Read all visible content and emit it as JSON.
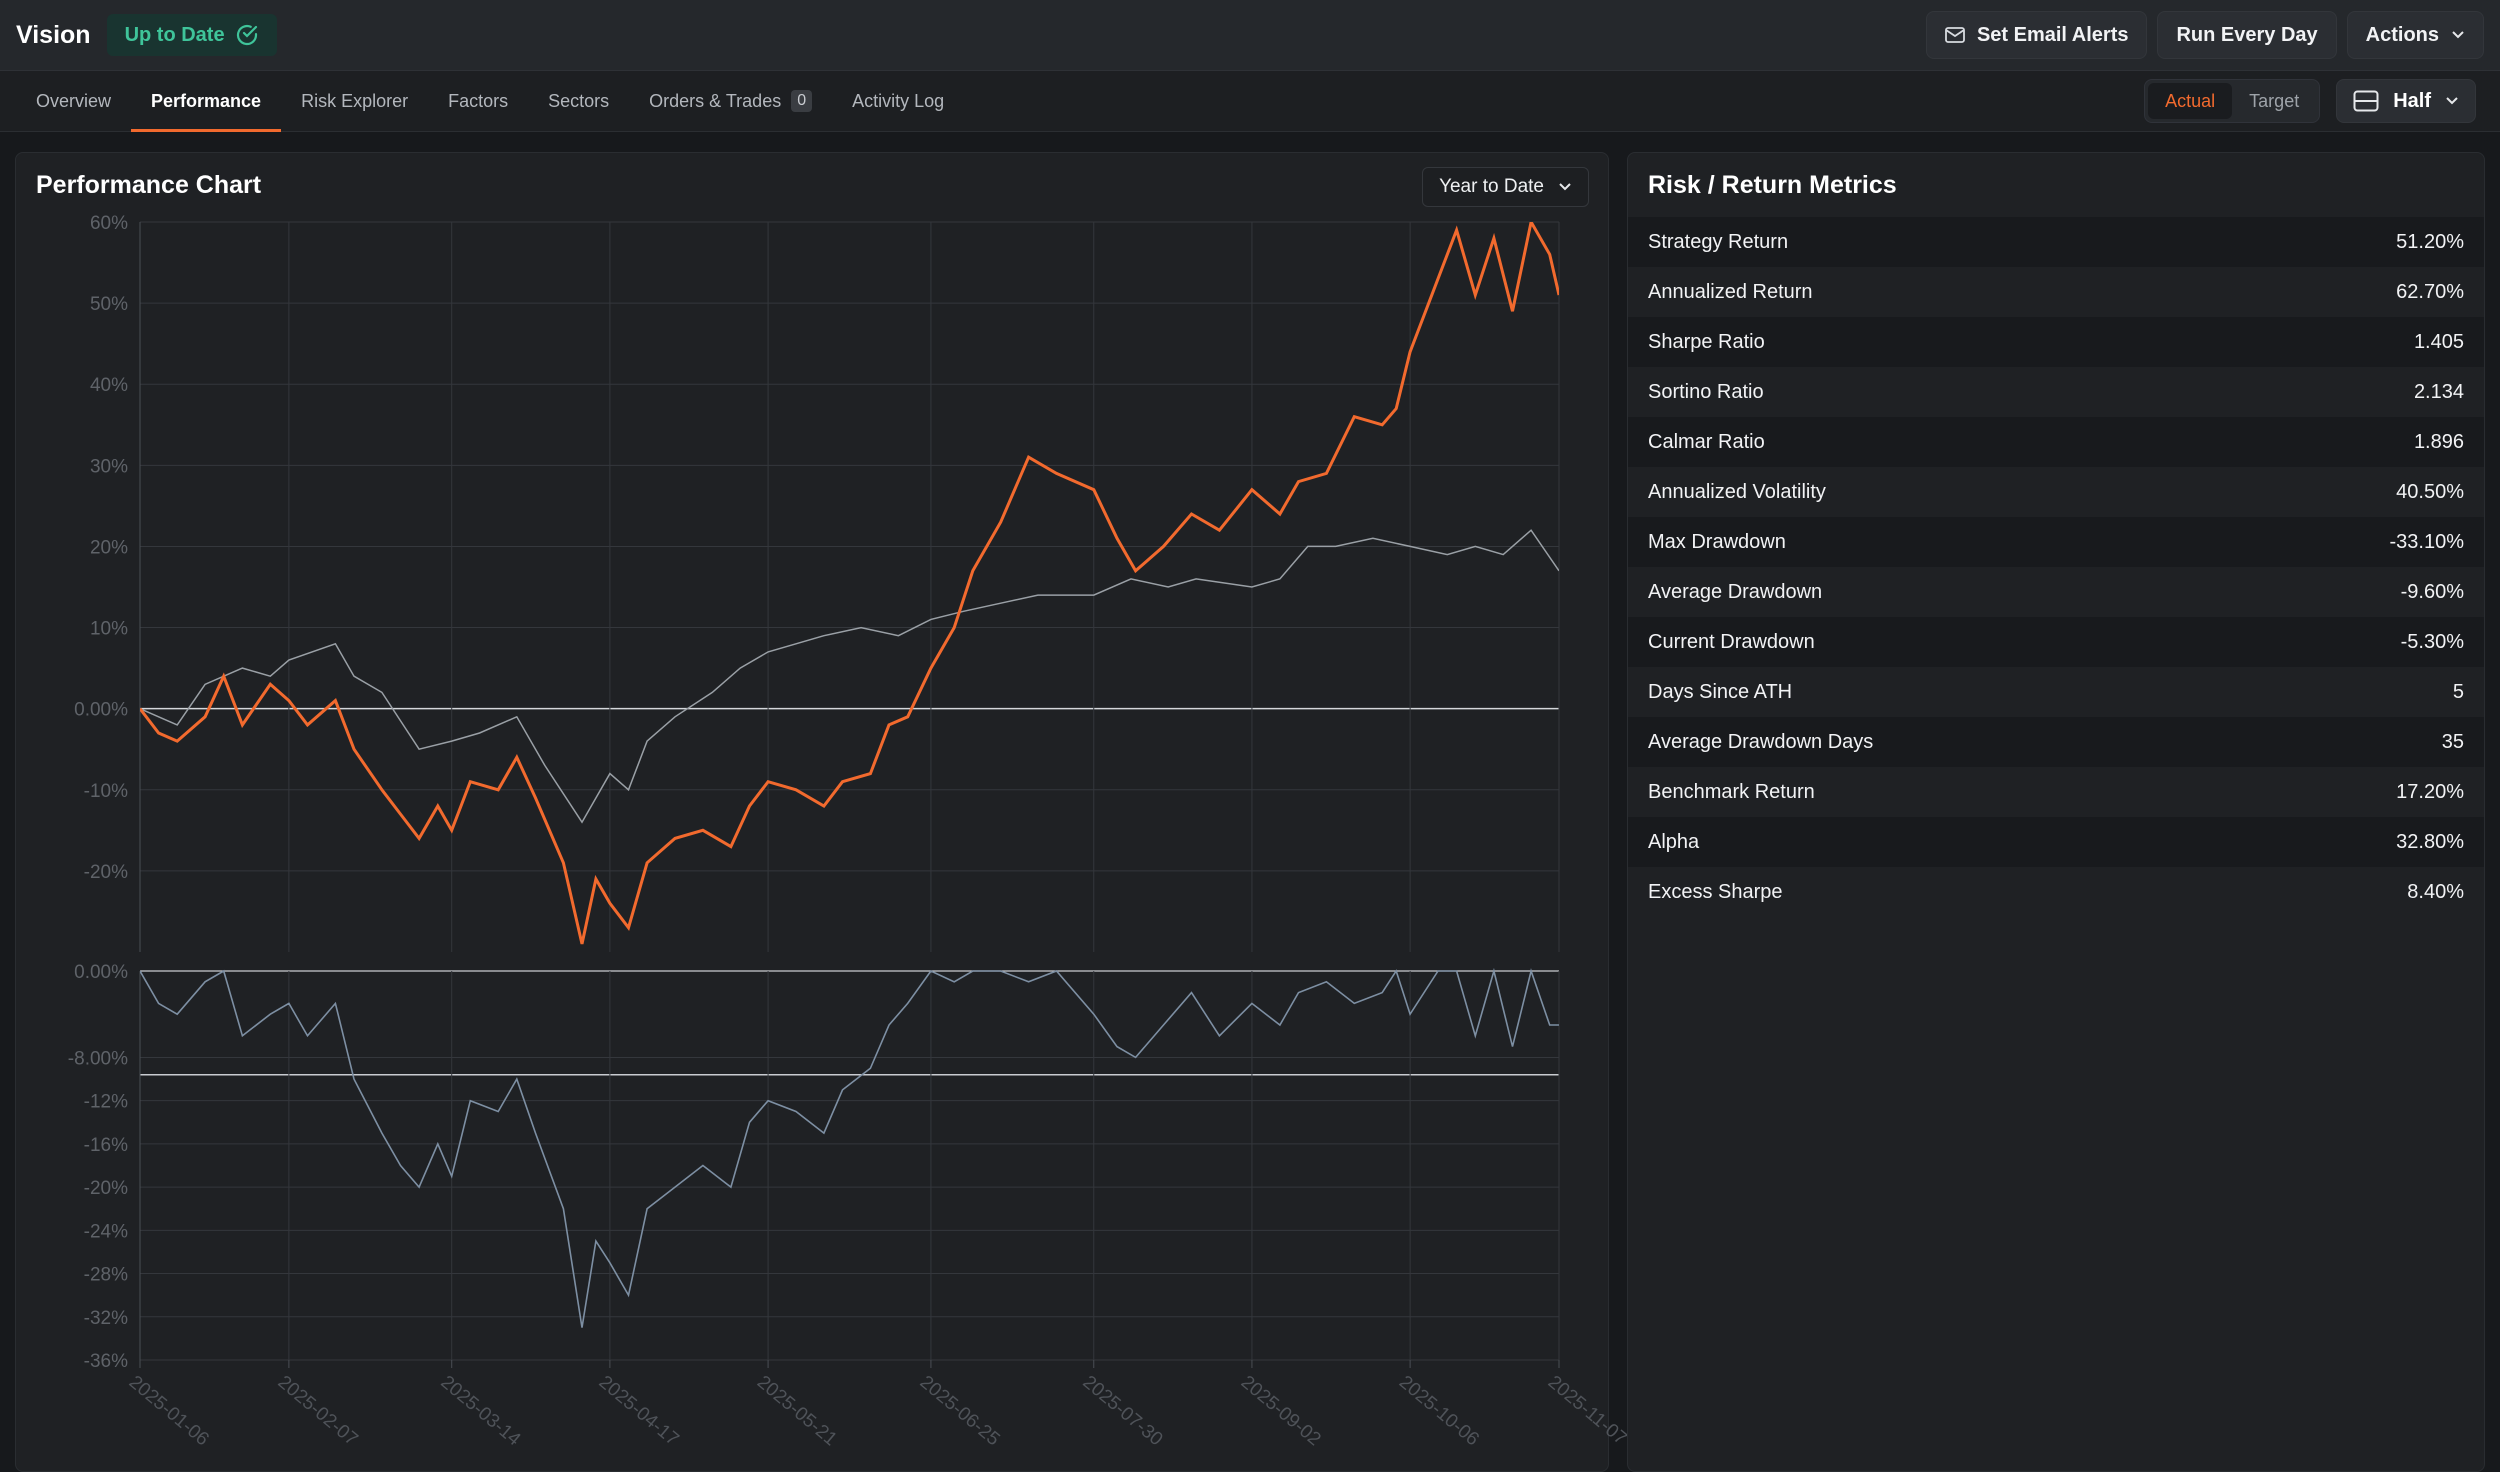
{
  "app": {
    "title": "Vision",
    "status": "Up to Date"
  },
  "top_actions": {
    "email_alerts": "Set Email Alerts",
    "run_schedule": "Run Every Day",
    "actions": "Actions"
  },
  "tabs": [
    {
      "label": "Overview"
    },
    {
      "label": "Performance",
      "active": true
    },
    {
      "label": "Risk Explorer"
    },
    {
      "label": "Factors"
    },
    {
      "label": "Sectors"
    },
    {
      "label": "Orders & Trades",
      "count": "0"
    },
    {
      "label": "Activity Log"
    }
  ],
  "view_toggle": {
    "actual": "Actual",
    "target": "Target",
    "active": "Actual"
  },
  "layout_button": {
    "label": "Half"
  },
  "performance_panel": {
    "title": "Performance Chart",
    "range": "Year to Date"
  },
  "metrics_panel": {
    "title": "Risk / Return Metrics",
    "rows": [
      {
        "label": "Strategy Return",
        "value": "51.20%"
      },
      {
        "label": "Annualized Return",
        "value": "62.70%"
      },
      {
        "label": "Sharpe Ratio",
        "value": "1.405"
      },
      {
        "label": "Sortino Ratio",
        "value": "2.134"
      },
      {
        "label": "Calmar Ratio",
        "value": "1.896"
      },
      {
        "label": "Annualized Volatility",
        "value": "40.50%"
      },
      {
        "label": "Max Drawdown",
        "value": "-33.10%"
      },
      {
        "label": "Average Drawdown",
        "value": "-9.60%"
      },
      {
        "label": "Current Drawdown",
        "value": "-5.30%"
      },
      {
        "label": "Days Since ATH",
        "value": "5"
      },
      {
        "label": "Average Drawdown Days",
        "value": "35"
      },
      {
        "label": "Benchmark Return",
        "value": "17.20%"
      },
      {
        "label": "Alpha",
        "value": "32.80%"
      },
      {
        "label": "Excess Sharpe",
        "value": "8.40%"
      }
    ]
  },
  "colors": {
    "strategy": "#f26a2e",
    "benchmark": "#9aa0a6",
    "drawdown": "#7d8fa3",
    "accent_green": "#3fc49a"
  },
  "chart_data": [
    {
      "type": "line",
      "ylim": [
        -30,
        60
      ],
      "y_ticks": [
        "-20%",
        "-10%",
        "0.00%",
        "10%",
        "20%",
        "30%",
        "40%",
        "50%",
        "60%"
      ],
      "y_tick_values": [
        -20,
        -10,
        0,
        10,
        20,
        30,
        40,
        50,
        60
      ],
      "x_ticks": [
        "2025-01-06",
        "2025-02-07",
        "2025-03-14",
        "2025-04-17",
        "2025-05-21",
        "2025-06-25",
        "2025-07-30",
        "2025-09-02",
        "2025-10-06",
        "2025-11-07"
      ],
      "series": [
        {
          "role": "strategy",
          "points": [
            [
              "2025-01-06",
              0
            ],
            [
              "2025-01-10",
              -3
            ],
            [
              "2025-01-14",
              -4
            ],
            [
              "2025-01-20",
              -1
            ],
            [
              "2025-01-24",
              4
            ],
            [
              "2025-01-28",
              -2
            ],
            [
              "2025-02-03",
              3
            ],
            [
              "2025-02-07",
              1
            ],
            [
              "2025-02-11",
              -2
            ],
            [
              "2025-02-17",
              1
            ],
            [
              "2025-02-21",
              -5
            ],
            [
              "2025-02-27",
              -10
            ],
            [
              "2025-03-03",
              -13
            ],
            [
              "2025-03-07",
              -16
            ],
            [
              "2025-03-11",
              -12
            ],
            [
              "2025-03-14",
              -15
            ],
            [
              "2025-03-18",
              -9
            ],
            [
              "2025-03-24",
              -10
            ],
            [
              "2025-03-28",
              -6
            ],
            [
              "2025-04-01",
              -11
            ],
            [
              "2025-04-07",
              -19
            ],
            [
              "2025-04-11",
              -29
            ],
            [
              "2025-04-14",
              -21
            ],
            [
              "2025-04-17",
              -24
            ],
            [
              "2025-04-21",
              -27
            ],
            [
              "2025-04-25",
              -19
            ],
            [
              "2025-05-01",
              -16
            ],
            [
              "2025-05-07",
              -15
            ],
            [
              "2025-05-13",
              -17
            ],
            [
              "2025-05-17",
              -12
            ],
            [
              "2025-05-21",
              -9
            ],
            [
              "2025-05-27",
              -10
            ],
            [
              "2025-06-02",
              -12
            ],
            [
              "2025-06-06",
              -9
            ],
            [
              "2025-06-12",
              -8
            ],
            [
              "2025-06-16",
              -2
            ],
            [
              "2025-06-20",
              -1
            ],
            [
              "2025-06-25",
              5
            ],
            [
              "2025-06-30",
              10
            ],
            [
              "2025-07-04",
              17
            ],
            [
              "2025-07-10",
              23
            ],
            [
              "2025-07-16",
              31
            ],
            [
              "2025-07-22",
              29
            ],
            [
              "2025-07-30",
              27
            ],
            [
              "2025-08-04",
              21
            ],
            [
              "2025-08-08",
              17
            ],
            [
              "2025-08-14",
              20
            ],
            [
              "2025-08-20",
              24
            ],
            [
              "2025-08-26",
              22
            ],
            [
              "2025-09-02",
              27
            ],
            [
              "2025-09-08",
              24
            ],
            [
              "2025-09-12",
              28
            ],
            [
              "2025-09-18",
              29
            ],
            [
              "2025-09-24",
              36
            ],
            [
              "2025-09-30",
              35
            ],
            [
              "2025-10-03",
              37
            ],
            [
              "2025-10-06",
              44
            ],
            [
              "2025-10-12",
              53
            ],
            [
              "2025-10-16",
              59
            ],
            [
              "2025-10-20",
              51
            ],
            [
              "2025-10-24",
              58
            ],
            [
              "2025-10-28",
              49
            ],
            [
              "2025-11-01",
              60
            ],
            [
              "2025-11-05",
              56
            ],
            [
              "2025-11-07",
              51
            ]
          ]
        },
        {
          "role": "benchmark",
          "points": [
            [
              "2025-01-06",
              0
            ],
            [
              "2025-01-14",
              -2
            ],
            [
              "2025-01-20",
              3
            ],
            [
              "2025-01-28",
              5
            ],
            [
              "2025-02-03",
              4
            ],
            [
              "2025-02-07",
              6
            ],
            [
              "2025-02-17",
              8
            ],
            [
              "2025-02-21",
              4
            ],
            [
              "2025-02-27",
              2
            ],
            [
              "2025-03-07",
              -5
            ],
            [
              "2025-03-14",
              -4
            ],
            [
              "2025-03-20",
              -3
            ],
            [
              "2025-03-28",
              -1
            ],
            [
              "2025-04-03",
              -7
            ],
            [
              "2025-04-11",
              -14
            ],
            [
              "2025-04-17",
              -8
            ],
            [
              "2025-04-21",
              -10
            ],
            [
              "2025-04-25",
              -4
            ],
            [
              "2025-05-01",
              -1
            ],
            [
              "2025-05-09",
              2
            ],
            [
              "2025-05-15",
              5
            ],
            [
              "2025-05-21",
              7
            ],
            [
              "2025-05-27",
              8
            ],
            [
              "2025-06-02",
              9
            ],
            [
              "2025-06-10",
              10
            ],
            [
              "2025-06-18",
              9
            ],
            [
              "2025-06-25",
              11
            ],
            [
              "2025-07-02",
              12
            ],
            [
              "2025-07-10",
              13
            ],
            [
              "2025-07-18",
              14
            ],
            [
              "2025-07-30",
              14
            ],
            [
              "2025-08-07",
              16
            ],
            [
              "2025-08-15",
              15
            ],
            [
              "2025-08-21",
              16
            ],
            [
              "2025-09-02",
              15
            ],
            [
              "2025-09-08",
              16
            ],
            [
              "2025-09-14",
              20
            ],
            [
              "2025-09-20",
              20
            ],
            [
              "2025-09-28",
              21
            ],
            [
              "2025-10-06",
              20
            ],
            [
              "2025-10-14",
              19
            ],
            [
              "2025-10-20",
              20
            ],
            [
              "2025-10-26",
              19
            ],
            [
              "2025-11-01",
              22
            ],
            [
              "2025-11-07",
              17
            ]
          ]
        }
      ]
    },
    {
      "type": "line",
      "ylim": [
        -36,
        0
      ],
      "y_ticks": [
        "-36%",
        "-32%",
        "-28%",
        "-24%",
        "-20%",
        "-16%",
        "-12%",
        "-8.00%",
        "0.00%"
      ],
      "y_tick_values": [
        -36,
        -32,
        -28,
        -24,
        -20,
        -16,
        -12,
        -8,
        0
      ],
      "reference_line": -9.6,
      "x_ticks": [
        "2025-01-06",
        "2025-02-07",
        "2025-03-14",
        "2025-04-17",
        "2025-05-21",
        "2025-06-25",
        "2025-07-30",
        "2025-09-02",
        "2025-10-06",
        "2025-11-07"
      ],
      "series": [
        {
          "role": "drawdown",
          "points": [
            [
              "2025-01-06",
              0
            ],
            [
              "2025-01-10",
              -3
            ],
            [
              "2025-01-14",
              -4
            ],
            [
              "2025-01-20",
              -1
            ],
            [
              "2025-01-24",
              0
            ],
            [
              "2025-01-28",
              -6
            ],
            [
              "2025-02-03",
              -4
            ],
            [
              "2025-02-07",
              -3
            ],
            [
              "2025-02-11",
              -6
            ],
            [
              "2025-02-17",
              -3
            ],
            [
              "2025-02-21",
              -10
            ],
            [
              "2025-02-27",
              -15
            ],
            [
              "2025-03-03",
              -18
            ],
            [
              "2025-03-07",
              -20
            ],
            [
              "2025-03-11",
              -16
            ],
            [
              "2025-03-14",
              -19
            ],
            [
              "2025-03-18",
              -12
            ],
            [
              "2025-03-24",
              -13
            ],
            [
              "2025-03-28",
              -10
            ],
            [
              "2025-04-01",
              -15
            ],
            [
              "2025-04-07",
              -22
            ],
            [
              "2025-04-11",
              -33
            ],
            [
              "2025-04-14",
              -25
            ],
            [
              "2025-04-17",
              -27
            ],
            [
              "2025-04-21",
              -30
            ],
            [
              "2025-04-25",
              -22
            ],
            [
              "2025-05-01",
              -20
            ],
            [
              "2025-05-07",
              -18
            ],
            [
              "2025-05-13",
              -20
            ],
            [
              "2025-05-17",
              -14
            ],
            [
              "2025-05-21",
              -12
            ],
            [
              "2025-05-27",
              -13
            ],
            [
              "2025-06-02",
              -15
            ],
            [
              "2025-06-06",
              -11
            ],
            [
              "2025-06-12",
              -9
            ],
            [
              "2025-06-16",
              -5
            ],
            [
              "2025-06-20",
              -3
            ],
            [
              "2025-06-25",
              0
            ],
            [
              "2025-06-30",
              -1
            ],
            [
              "2025-07-04",
              0
            ],
            [
              "2025-07-10",
              0
            ],
            [
              "2025-07-16",
              -1
            ],
            [
              "2025-07-22",
              0
            ],
            [
              "2025-07-30",
              -4
            ],
            [
              "2025-08-04",
              -7
            ],
            [
              "2025-08-08",
              -8
            ],
            [
              "2025-08-14",
              -5
            ],
            [
              "2025-08-20",
              -2
            ],
            [
              "2025-08-26",
              -6
            ],
            [
              "2025-09-02",
              -3
            ],
            [
              "2025-09-08",
              -5
            ],
            [
              "2025-09-12",
              -2
            ],
            [
              "2025-09-18",
              -1
            ],
            [
              "2025-09-24",
              -3
            ],
            [
              "2025-09-30",
              -2
            ],
            [
              "2025-10-03",
              0
            ],
            [
              "2025-10-06",
              -4
            ],
            [
              "2025-10-12",
              0
            ],
            [
              "2025-10-16",
              0
            ],
            [
              "2025-10-20",
              -6
            ],
            [
              "2025-10-24",
              0
            ],
            [
              "2025-10-28",
              -7
            ],
            [
              "2025-11-01",
              0
            ],
            [
              "2025-11-05",
              -5
            ],
            [
              "2025-11-07",
              -5
            ]
          ]
        }
      ]
    }
  ]
}
